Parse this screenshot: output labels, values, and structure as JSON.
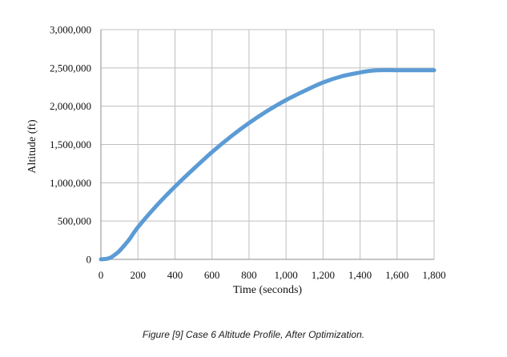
{
  "caption": "Figure [9] Case 6 Altitude Profile, After Optimization.",
  "colors": {
    "series": "#5b9bd5",
    "grid": "#bfbfbf",
    "axis": "#8c8c8c",
    "text": "#111111"
  },
  "chart_data": {
    "type": "line",
    "title": "",
    "xlabel": "Time (seconds)",
    "ylabel": "Altitude (ft)",
    "xlim": [
      0,
      1800
    ],
    "ylim": [
      0,
      3000000
    ],
    "x_ticks": [
      0,
      200,
      400,
      600,
      800,
      1000,
      1200,
      1400,
      1600,
      1800
    ],
    "x_tick_labels": [
      "0",
      "200",
      "400",
      "600",
      "800",
      "1,000",
      "1,200",
      "1,400",
      "1,600",
      "1,800"
    ],
    "y_ticks": [
      0,
      500000,
      1000000,
      1500000,
      2000000,
      2500000,
      3000000
    ],
    "y_tick_labels": [
      "0",
      "500,000",
      "1,000,000",
      "1,500,000",
      "2,000,000",
      "2,500,000",
      "3,000,000"
    ],
    "grid": true,
    "legend": "none",
    "series": [
      {
        "x": [
          0,
          25,
          50,
          75,
          100,
          150,
          200,
          300,
          400,
          500,
          600,
          700,
          800,
          900,
          1000,
          1100,
          1200,
          1300,
          1400,
          1450,
          1500,
          1600,
          1700,
          1800
        ],
        "y": [
          0,
          5000,
          20000,
          60000,
          110000,
          250000,
          420000,
          700000,
          950000,
          1180000,
          1400000,
          1600000,
          1780000,
          1940000,
          2080000,
          2200000,
          2310000,
          2390000,
          2440000,
          2460000,
          2470000,
          2470000,
          2470000,
          2470000
        ]
      }
    ]
  }
}
